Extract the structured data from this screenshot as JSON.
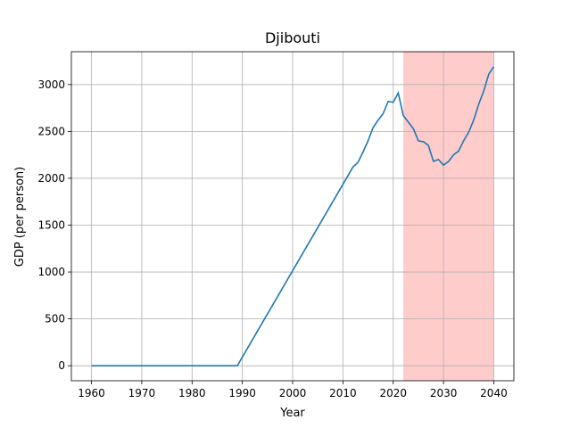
{
  "chart_data": {
    "type": "line",
    "title": "Djibouti",
    "xlabel": "Year",
    "ylabel": "GDP (per person)",
    "xlim": [
      1956.0,
      2044.0
    ],
    "ylim": [
      -160,
      3350
    ],
    "xticks": [
      1960,
      1970,
      1980,
      1990,
      2000,
      2010,
      2020,
      2030,
      2040
    ],
    "yticks": [
      0,
      500,
      1000,
      1500,
      2000,
      2500,
      3000
    ],
    "grid": true,
    "line_color": "#1f77b4",
    "highlight": {
      "x_start": 2022,
      "x_end": 2040,
      "color": "#ffcccc"
    },
    "series": [
      {
        "x": [
          1960,
          1965,
          1970,
          1975,
          1980,
          1985,
          1989,
          2012,
          2013,
          2014,
          2015,
          2016,
          2017,
          2018,
          2019,
          2020,
          2021,
          2022,
          2023,
          2024,
          2025,
          2026,
          2027,
          2028,
          2029,
          2030,
          2031,
          2032,
          2033,
          2034,
          2035,
          2036,
          2037,
          2038,
          2039,
          2040
        ],
        "y": [
          0,
          0,
          0,
          0,
          0,
          0,
          0,
          2120,
          2170,
          2280,
          2400,
          2540,
          2620,
          2690,
          2820,
          2810,
          2910,
          2670,
          2600,
          2530,
          2400,
          2390,
          2350,
          2180,
          2200,
          2140,
          2180,
          2250,
          2290,
          2400,
          2490,
          2620,
          2790,
          2930,
          3110,
          3190
        ]
      }
    ]
  }
}
